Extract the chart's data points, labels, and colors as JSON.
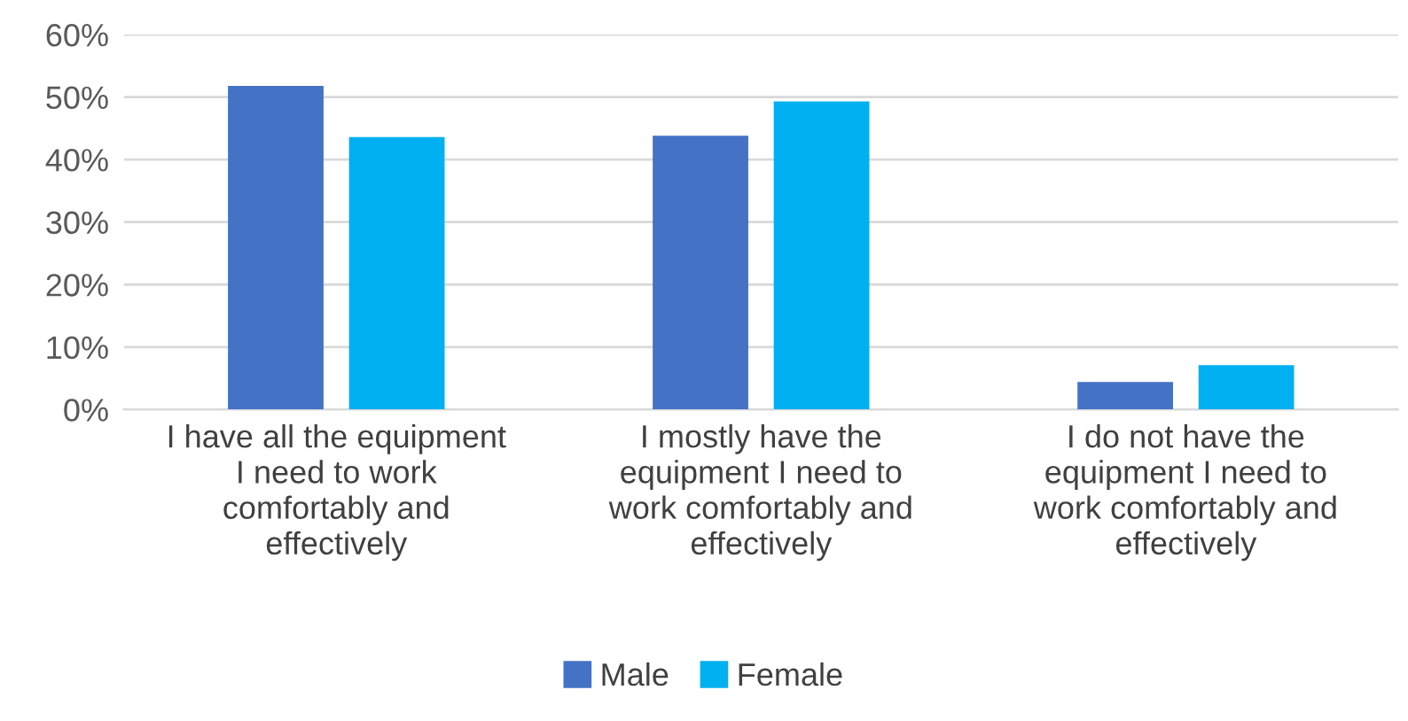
{
  "chart_data": {
    "type": "bar",
    "categories": [
      "I have all the equipment\nI need to work\ncomfortably and\neffectively",
      "I mostly have the\nequipment I need to\nwork comfortably and\neffectively",
      "I do not have the\nequipment I need to\nwork comfortably and\neffectively"
    ],
    "series": [
      {
        "name": "Male",
        "color": "#4472c4",
        "values": [
          51.8,
          43.8,
          4.4
        ]
      },
      {
        "name": "Female",
        "color": "#00b0f0",
        "values": [
          43.6,
          49.3,
          7.1
        ]
      }
    ],
    "ylim": [
      0,
      60
    ],
    "yticks": [
      {
        "value": 0,
        "label": "0%"
      },
      {
        "value": 10,
        "label": "10%"
      },
      {
        "value": 20,
        "label": "20%"
      },
      {
        "value": 30,
        "label": "30%"
      },
      {
        "value": 40,
        "label": "40%"
      },
      {
        "value": 50,
        "label": "50%"
      },
      {
        "value": 60,
        "label": "60%"
      }
    ],
    "grid": "y",
    "legend": "bottom"
  }
}
